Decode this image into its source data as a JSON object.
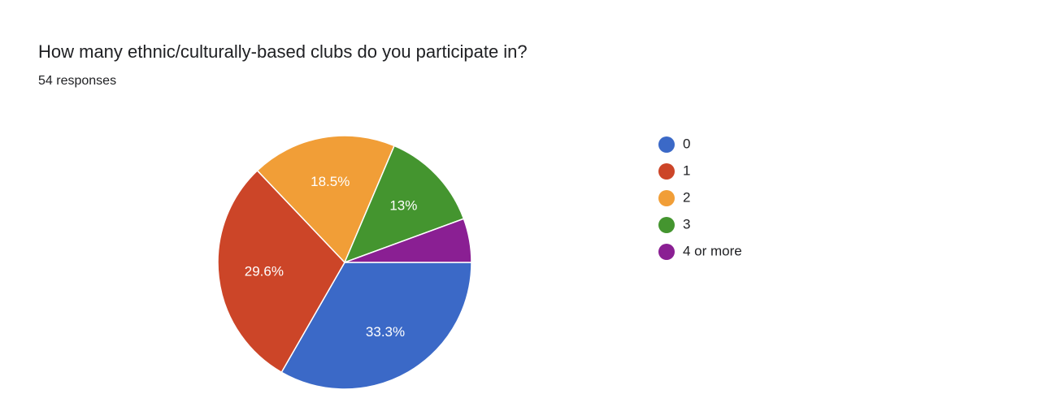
{
  "chart_data": {
    "type": "pie",
    "title": "How many ethnic/culturally-based clubs do you participate in?",
    "subtitle": "54 responses",
    "categories": [
      "0",
      "1",
      "2",
      "3",
      "4 or more"
    ],
    "values": [
      33.3,
      29.6,
      18.5,
      13,
      5.6
    ],
    "value_labels": [
      "33.3%",
      "29.6%",
      "18.5%",
      "13%",
      null
    ],
    "colors": [
      "#3b69c7",
      "#cc4528",
      "#f19e37",
      "#44952f",
      "#8a1f93"
    ],
    "legend": "right"
  }
}
